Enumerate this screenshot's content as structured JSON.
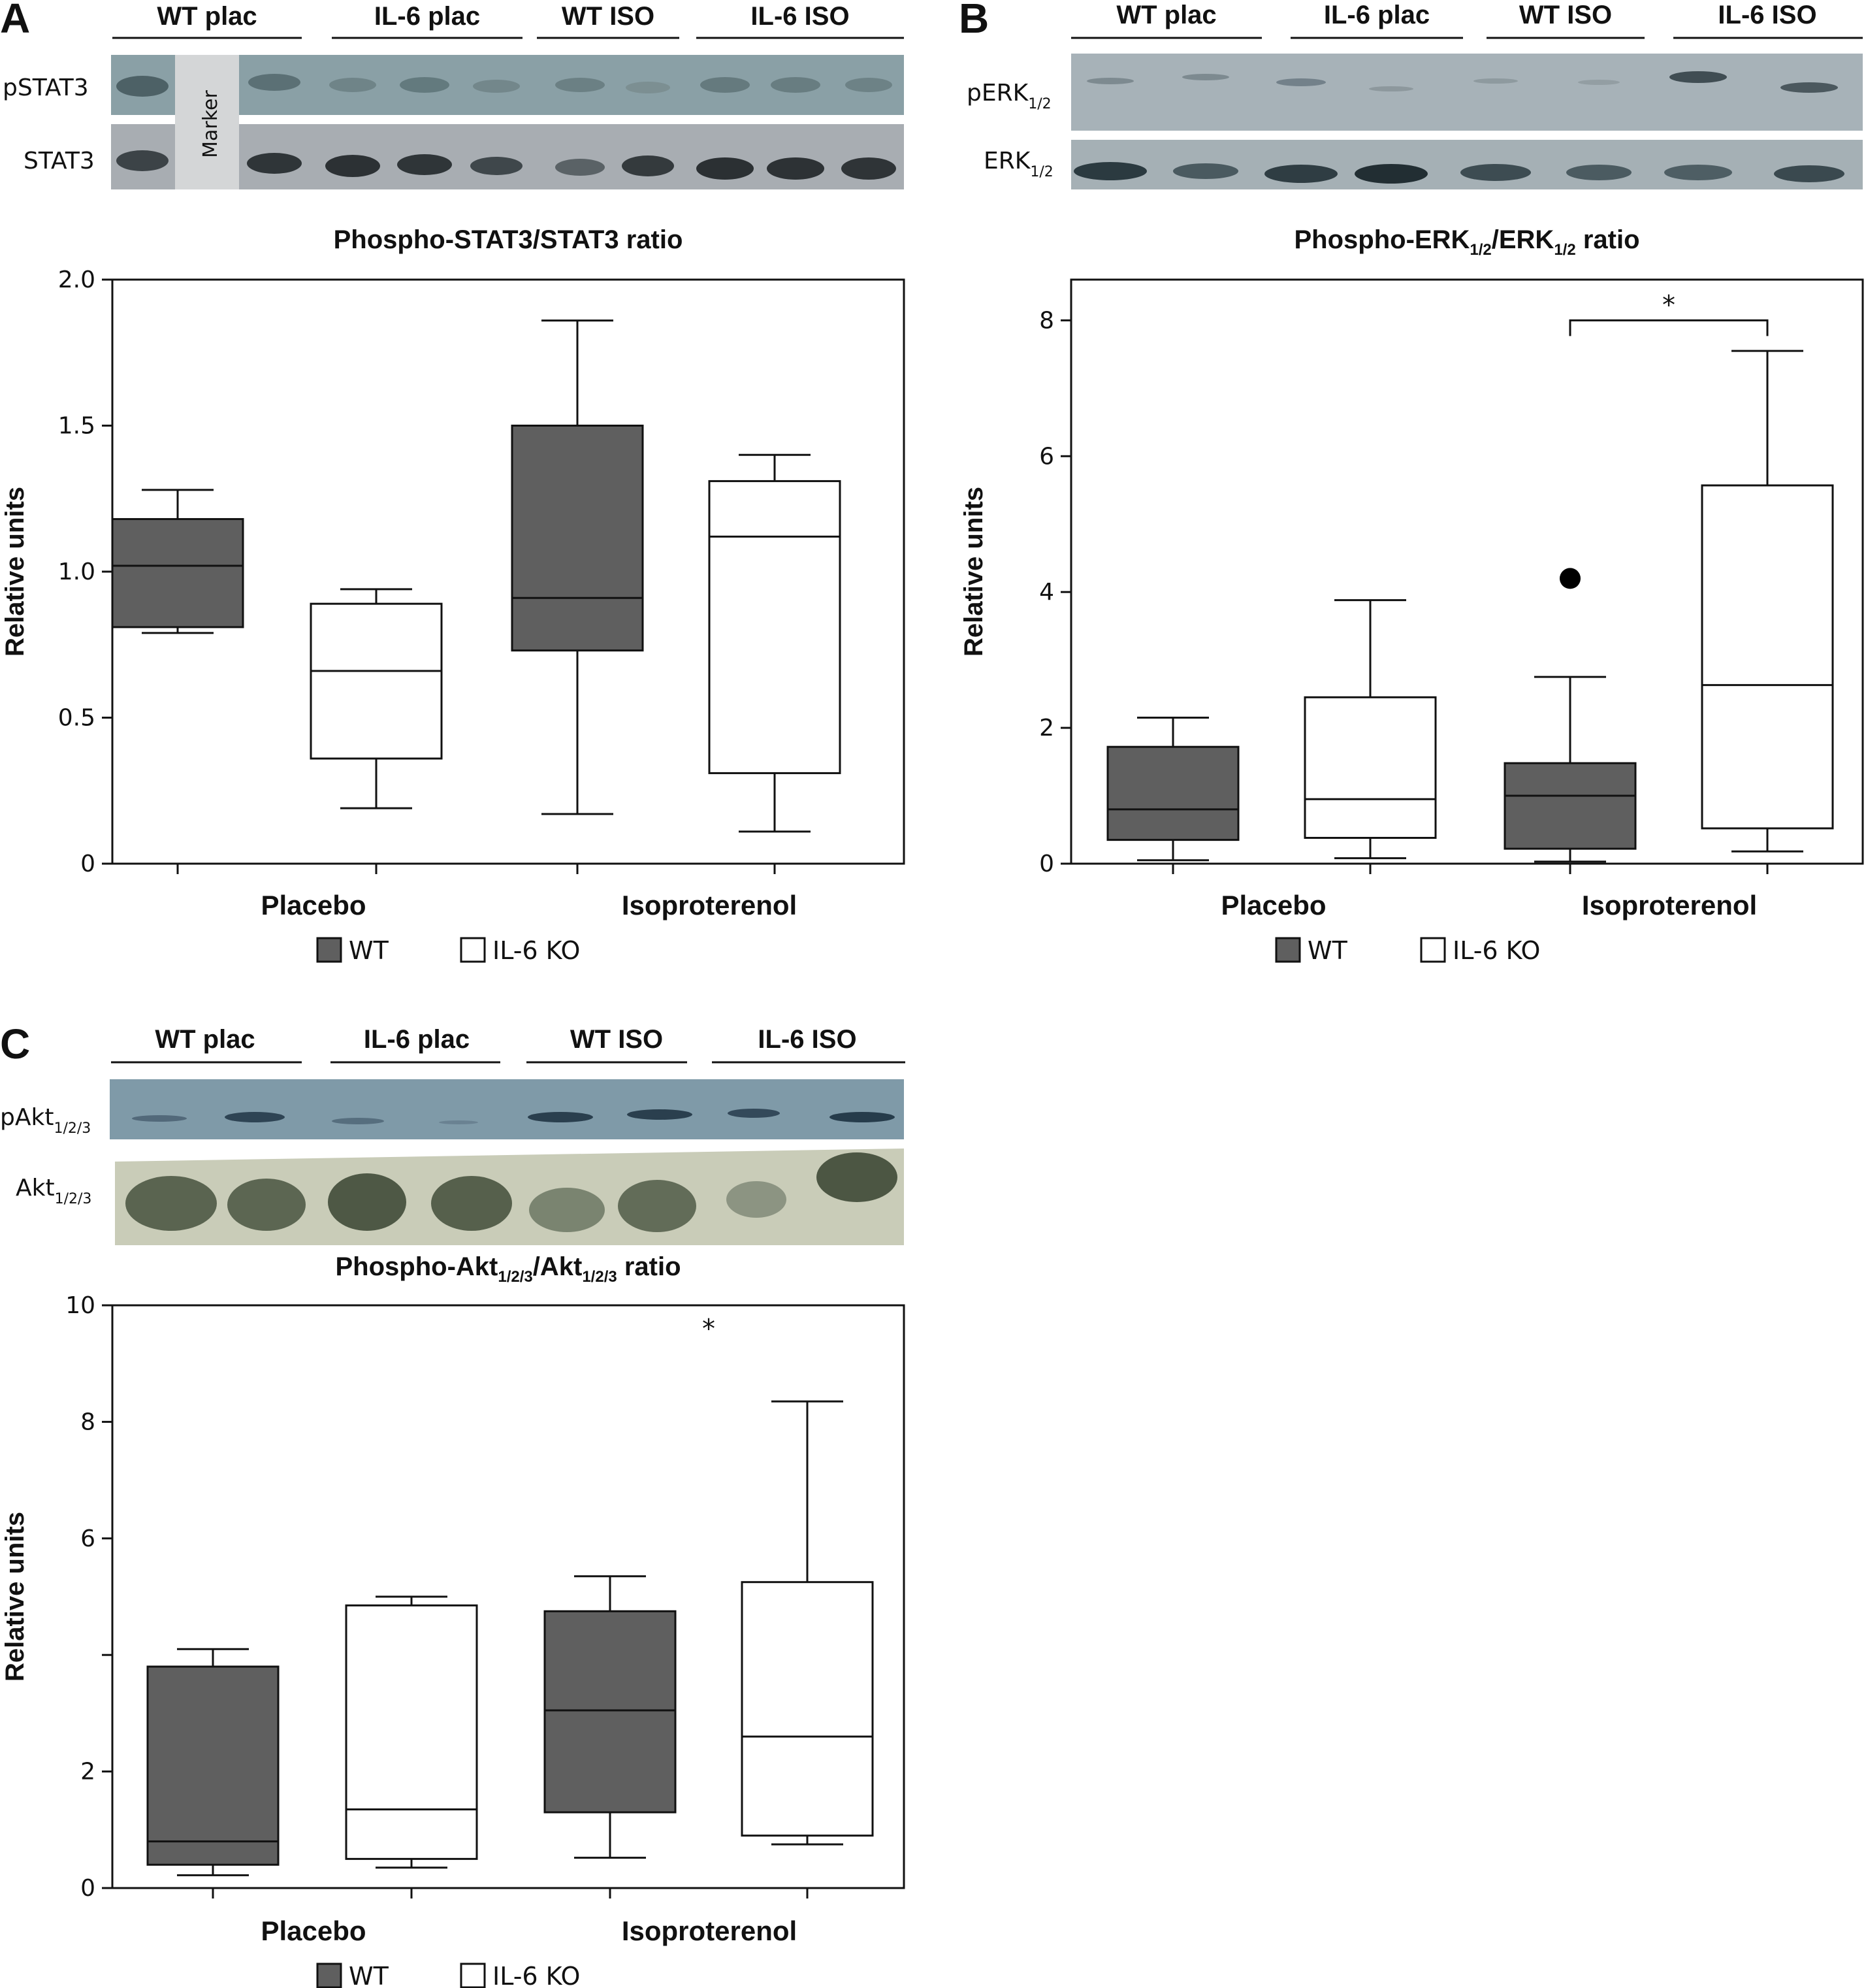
{
  "colors": {
    "wt_fill": "#5f5f5f",
    "ko_fill": "#ffffff",
    "stroke": "#111111"
  },
  "legend": {
    "items": [
      {
        "label": "WT",
        "fill": "#5f5f5f"
      },
      {
        "label": "IL-6 KO",
        "fill": "#ffffff"
      }
    ]
  },
  "blots": {
    "A": {
      "lanes": [
        "WT plac",
        "IL-6 plac",
        "WT ISO",
        "IL-6 ISO"
      ],
      "rows": [
        "pSTAT3",
        "STAT3"
      ],
      "marker": "Marker"
    },
    "B": {
      "lanes": [
        "WT plac",
        "IL-6 plac",
        "WT ISO",
        "IL-6 ISO"
      ],
      "rows": [
        {
          "main": "pERK",
          "sub": "1/2"
        },
        {
          "main": "ERK",
          "sub": "1/2"
        }
      ]
    },
    "C": {
      "lanes": [
        "WT plac",
        "IL-6 plac",
        "WT ISO",
        "IL-6 ISO"
      ],
      "rows": [
        {
          "main": "pAkt",
          "sub": "1/2/3"
        },
        {
          "main": "Akt",
          "sub": "1/2/3"
        }
      ]
    }
  },
  "chart_data": [
    {
      "panel": "A",
      "type": "box",
      "title": "Phospho-STAT3/STAT3 ratio",
      "ylabel": "Relative units",
      "ylim": [
        0,
        2.0
      ],
      "yticks": [
        "0",
        "0.5",
        "1.0",
        "1.5",
        "2.0"
      ],
      "categories": [
        "Placebo",
        "Isoproterenol"
      ],
      "boxes": [
        {
          "group": "WT",
          "category": "Placebo",
          "min": 0.79,
          "q1": 0.81,
          "median": 1.02,
          "q3": 1.18,
          "max": 1.28
        },
        {
          "group": "IL-6 KO",
          "category": "Placebo",
          "min": 0.19,
          "q1": 0.36,
          "median": 0.66,
          "q3": 0.89,
          "max": 0.94
        },
        {
          "group": "WT",
          "category": "Isoproterenol",
          "min": 0.17,
          "q1": 0.73,
          "median": 0.91,
          "q3": 1.5,
          "max": 1.86
        },
        {
          "group": "IL-6 KO",
          "category": "Isoproterenol",
          "min": 0.11,
          "q1": 0.31,
          "median": 1.12,
          "q3": 1.31,
          "max": 1.4
        }
      ],
      "outliers": [],
      "annotations": []
    },
    {
      "panel": "B",
      "type": "box",
      "title": "Phospho-ERK1/2/ERK1/2 ratio",
      "title_parts": [
        {
          "text": "Phospho-ERK"
        },
        {
          "text": "1/2",
          "sub": true
        },
        {
          "text": "/ERK"
        },
        {
          "text": "1/2",
          "sub": true
        },
        {
          "text": " ratio"
        }
      ],
      "ylabel": "Relative units",
      "ylim": [
        0,
        8.6
      ],
      "yticks": [
        "0",
        "2",
        "4",
        "6",
        "8"
      ],
      "categories": [
        "Placebo",
        "Isoproterenol"
      ],
      "boxes": [
        {
          "group": "WT",
          "category": "Placebo",
          "min": 0.05,
          "q1": 0.35,
          "median": 0.8,
          "q3": 1.72,
          "max": 2.15
        },
        {
          "group": "IL-6 KO",
          "category": "Placebo",
          "min": 0.08,
          "q1": 0.38,
          "median": 0.95,
          "q3": 2.45,
          "max": 3.88
        },
        {
          "group": "WT",
          "category": "Isoproterenol",
          "min": 0.03,
          "q1": 0.22,
          "median": 1.0,
          "q3": 1.48,
          "max": 2.75
        },
        {
          "group": "IL-6 KO",
          "category": "Isoproterenol",
          "min": 0.18,
          "q1": 0.52,
          "median": 2.63,
          "q3": 5.57,
          "max": 7.55
        }
      ],
      "outliers": [
        {
          "box": 2,
          "value": 4.2
        }
      ],
      "annotations": [
        {
          "type": "bracket",
          "from_box": 2,
          "to_box": 3,
          "y": 8.0,
          "label": "*"
        }
      ]
    },
    {
      "panel": "C",
      "type": "box",
      "title": "Phospho-Akt1/2/3/Akt1/2/3 ratio",
      "title_parts": [
        {
          "text": "Phospho-Akt"
        },
        {
          "text": "1/2/3",
          "sub": true
        },
        {
          "text": "/Akt"
        },
        {
          "text": "1/2/3",
          "sub": true
        },
        {
          "text": " ratio"
        }
      ],
      "ylabel": "Relative units",
      "ylim": [
        0,
        10
      ],
      "yticks": [
        "0",
        "2",
        "",
        "6",
        "8",
        "10"
      ],
      "categories": [
        "Placebo",
        "Isoproterenol"
      ],
      "boxes": [
        {
          "group": "WT",
          "category": "Placebo",
          "min": 0.22,
          "q1": 0.4,
          "median": 0.8,
          "q3": 3.8,
          "max": 4.1
        },
        {
          "group": "IL-6 KO",
          "category": "Placebo",
          "min": 0.35,
          "q1": 0.5,
          "median": 1.35,
          "q3": 4.85,
          "max": 5.0
        },
        {
          "group": "WT",
          "category": "Isoproterenol",
          "min": 0.52,
          "q1": 1.3,
          "median": 3.05,
          "q3": 4.75,
          "max": 5.35
        },
        {
          "group": "IL-6 KO",
          "category": "Isoproterenol",
          "min": 0.75,
          "q1": 0.9,
          "median": 2.6,
          "q3": 5.25,
          "max": 8.35
        }
      ],
      "outliers": [],
      "annotations": [
        {
          "type": "star",
          "x_box": 2.5,
          "y": 9.6,
          "label": "*"
        }
      ]
    }
  ]
}
